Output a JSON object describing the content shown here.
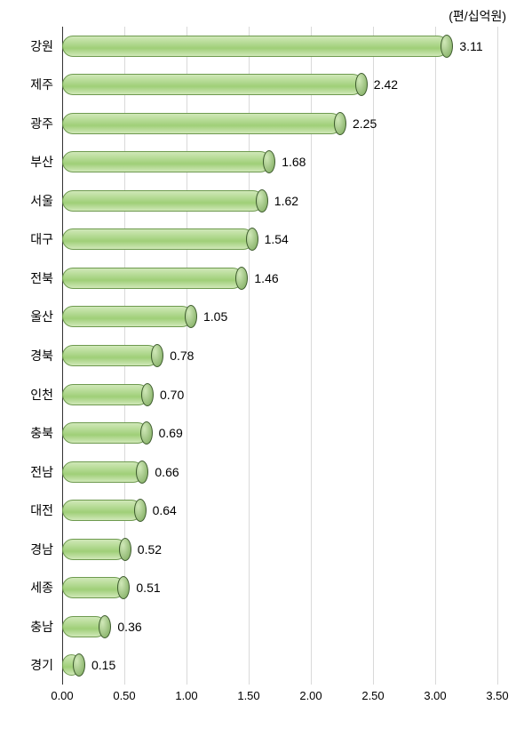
{
  "chart": {
    "type": "bar_horizontal_3d",
    "unit_label": "(편/십억원)",
    "background_color": "#ffffff",
    "grid_minor_color": "#d9d9d9",
    "grid_major_color": "#333333",
    "bar_fill_top": "#d0e8b8",
    "bar_fill_bottom": "#9fcf78",
    "bar_cap_fill": "#7aa85a",
    "bar_cap_border": "#3e5c2e",
    "bar_border": "#6e9a4f",
    "label_fontsize": 14,
    "tick_fontsize": 13,
    "value_fontsize": 14,
    "xlim_min": 0.0,
    "xlim_max": 3.5,
    "xtick_step": 0.5,
    "xtick_labels": [
      "0.00",
      "0.50",
      "1.00",
      "1.50",
      "2.00",
      "2.50",
      "3.00",
      "3.50"
    ],
    "bars": [
      {
        "category": "강원",
        "value": 3.11,
        "value_label": "3.11"
      },
      {
        "category": "제주",
        "value": 2.42,
        "value_label": "2.42"
      },
      {
        "category": "광주",
        "value": 2.25,
        "value_label": "2.25"
      },
      {
        "category": "부산",
        "value": 1.68,
        "value_label": "1.68"
      },
      {
        "category": "서울",
        "value": 1.62,
        "value_label": "1.62"
      },
      {
        "category": "대구",
        "value": 1.54,
        "value_label": "1.54"
      },
      {
        "category": "전북",
        "value": 1.46,
        "value_label": "1.46"
      },
      {
        "category": "울산",
        "value": 1.05,
        "value_label": "1.05"
      },
      {
        "category": "경북",
        "value": 0.78,
        "value_label": "0.78"
      },
      {
        "category": "인천",
        "value": 0.7,
        "value_label": "0.70"
      },
      {
        "category": "충북",
        "value": 0.69,
        "value_label": "0.69"
      },
      {
        "category": "전남",
        "value": 0.66,
        "value_label": "0.66"
      },
      {
        "category": "대전",
        "value": 0.64,
        "value_label": "0.64"
      },
      {
        "category": "경남",
        "value": 0.52,
        "value_label": "0.52"
      },
      {
        "category": "세종",
        "value": 0.51,
        "value_label": "0.51"
      },
      {
        "category": "충남",
        "value": 0.36,
        "value_label": "0.36"
      },
      {
        "category": "경기",
        "value": 0.15,
        "value_label": "0.15"
      }
    ]
  }
}
